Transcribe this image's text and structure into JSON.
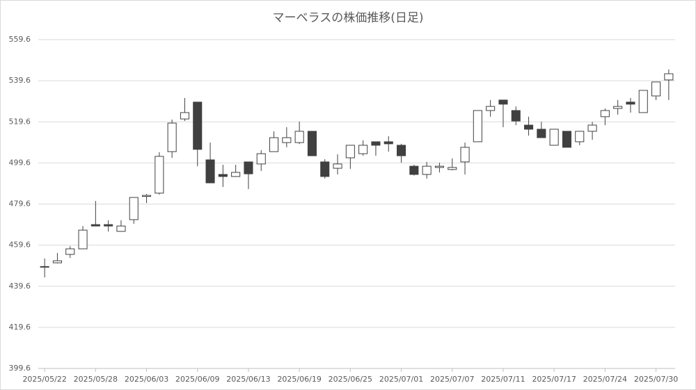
{
  "chart_data": {
    "type": "candlestick",
    "title": "マーベラスの株価推移(日足)",
    "categories": [
      "2025/05/22",
      null,
      null,
      null,
      "2025/05/28",
      null,
      null,
      null,
      "2025/06/03",
      null,
      null,
      null,
      "2025/06/09",
      null,
      null,
      null,
      "2025/06/13",
      null,
      null,
      null,
      "2025/06/19",
      null,
      null,
      null,
      "2025/06/25",
      null,
      null,
      null,
      "2025/07/01",
      null,
      null,
      null,
      "2025/07/07",
      null,
      null,
      null,
      "2025/07/11",
      null,
      null,
      null,
      "2025/07/17",
      null,
      null,
      null,
      "2025/07/24",
      null,
      null,
      null,
      "2025/07/30",
      null
    ],
    "open": [
      449.0,
      451.0,
      455.1,
      457.8,
      469.6,
      469.6,
      466.3,
      472.0,
      483.3,
      484.9,
      505.1,
      521.0,
      529.2,
      501.1,
      494.0,
      493.0,
      500.1,
      499.1,
      505.1,
      509.5,
      509.5,
      515.0,
      500.1,
      497.0,
      502.1,
      504.1,
      509.9,
      509.9,
      508.2,
      498.0,
      494.0,
      497.4,
      496.4,
      500.1,
      509.9,
      525.1,
      530.2,
      525.1,
      518.0,
      516.0,
      508.2,
      515.0,
      509.9,
      515.0,
      522.1,
      526.1,
      529.2,
      524.1,
      532.2,
      540.0
    ],
    "high": [
      453.1,
      455.8,
      459.1,
      468.9,
      481.1,
      471.7,
      471.7,
      482.8,
      484.5,
      504.8,
      520.7,
      531.2,
      529.2,
      509.5,
      498.7,
      498.7,
      500.1,
      505.8,
      515.0,
      517.0,
      519.7,
      515.0,
      501.4,
      503.8,
      508.2,
      510.6,
      509.9,
      512.6,
      508.9,
      498.7,
      500.1,
      499.7,
      501.8,
      509.5,
      525.1,
      530.2,
      530.2,
      527.1,
      522.1,
      519.6,
      516.0,
      515.0,
      515.0,
      519.6,
      526.1,
      530.2,
      531.2,
      534.9,
      539.0,
      545.1
    ],
    "low": [
      443.9,
      450.7,
      453.4,
      457.8,
      468.9,
      466.2,
      466.3,
      470.0,
      480.1,
      484.2,
      502.1,
      520.0,
      498.0,
      489.9,
      487.9,
      492.8,
      486.9,
      495.7,
      505.1,
      507.2,
      508.8,
      503.1,
      492.0,
      494.0,
      496.7,
      503.1,
      503.1,
      505.1,
      499.7,
      493.5,
      492.0,
      495.0,
      496.0,
      494.0,
      509.9,
      522.1,
      517.0,
      518.0,
      512.9,
      511.9,
      508.2,
      507.2,
      508.2,
      510.9,
      518.0,
      523.1,
      524.1,
      524.1,
      530.2,
      530.2
    ],
    "close": [
      449.2,
      452.0,
      457.8,
      466.9,
      468.9,
      468.9,
      468.9,
      482.8,
      483.8,
      502.8,
      519.0,
      524.1,
      506.2,
      489.9,
      493.0,
      495.0,
      494.3,
      504.1,
      511.9,
      511.9,
      515.0,
      503.1,
      493.0,
      499.1,
      508.2,
      508.2,
      508.2,
      508.9,
      503.1,
      494.0,
      498.0,
      498.0,
      497.4,
      507.2,
      525.1,
      527.1,
      528.2,
      520.0,
      516.0,
      511.9,
      516.0,
      507.2,
      515.0,
      518.0,
      525.1,
      527.1,
      528.2,
      534.9,
      539.0,
      543.0
    ],
    "up_color": "#ffffff",
    "down_color": "#404040",
    "line_color": "#404040",
    "ylim": [
      399.6,
      559.6
    ],
    "yticks": [
      399.6,
      419.6,
      439.6,
      459.6,
      479.6,
      499.6,
      519.6,
      539.6,
      559.6
    ],
    "grid": true
  }
}
